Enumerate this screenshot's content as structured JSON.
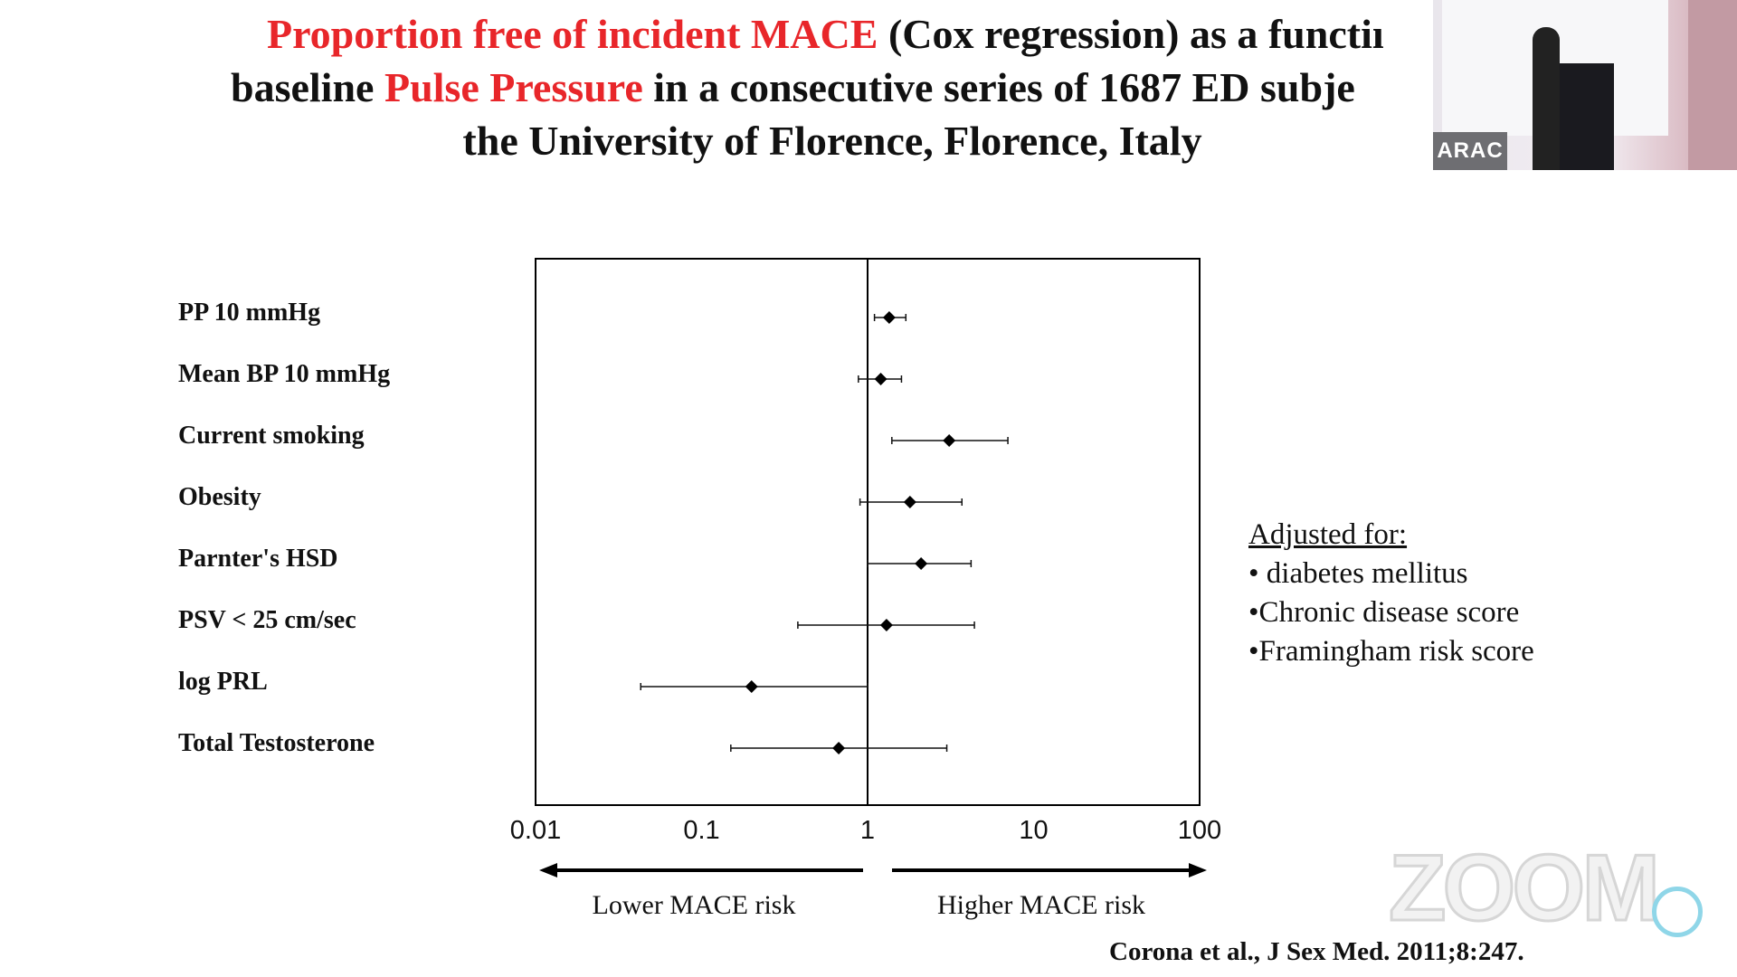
{
  "title": {
    "line1_red": "Proportion free of incident MACE",
    "line1_rest": " (Cox regression) as a functiı",
    "line2_start": "baseline ",
    "line2_red": "Pulse Pressure",
    "line2_rest": "  in a consecutive series of 1687 ED subje",
    "line3": "the University of Florence, Florence, Italy"
  },
  "colors": {
    "accent_red": "#e8262a",
    "ink": "#111111"
  },
  "chart_data": {
    "type": "forest",
    "xscale": "log",
    "xlim": [
      0.01,
      100
    ],
    "reference_line": 1,
    "xticks": [
      "0.01",
      "0.1",
      "1",
      "10",
      "100"
    ],
    "rows": [
      {
        "label": "PP 10 mmHg",
        "estimate": 1.35,
        "low": 1.1,
        "high": 1.7
      },
      {
        "label": "Mean BP 10 mmHg",
        "estimate": 1.2,
        "low": 0.88,
        "high": 1.6
      },
      {
        "label": "Current smoking",
        "estimate": 3.1,
        "low": 1.4,
        "high": 7.0
      },
      {
        "label": "Obesity",
        "estimate": 1.8,
        "low": 0.9,
        "high": 3.7
      },
      {
        "label": "Parnter's HSD",
        "estimate": 2.1,
        "low": 1.0,
        "high": 4.2
      },
      {
        "label": "PSV < 25 cm/sec",
        "estimate": 1.3,
        "low": 0.38,
        "high": 4.4
      },
      {
        "label": "log PRL",
        "estimate": 0.2,
        "low": 0.043,
        "high": 1.0
      },
      {
        "label": "Total Testosterone",
        "estimate": 0.67,
        "low": 0.15,
        "high": 3.0
      }
    ],
    "direction_labels": {
      "left": "Lower MACE risk",
      "right": "Higher MACE risk"
    }
  },
  "adjusted": {
    "heading": "Adjusted for:",
    "items": [
      " • diabetes mellitus",
      "•Chronic disease score",
      "•Framingham risk score"
    ]
  },
  "citation": "Corona et al., J Sex Med. 2011;8:247.",
  "overlay": {
    "camera_badge": "ARAC",
    "watermark": "ZOOM"
  }
}
